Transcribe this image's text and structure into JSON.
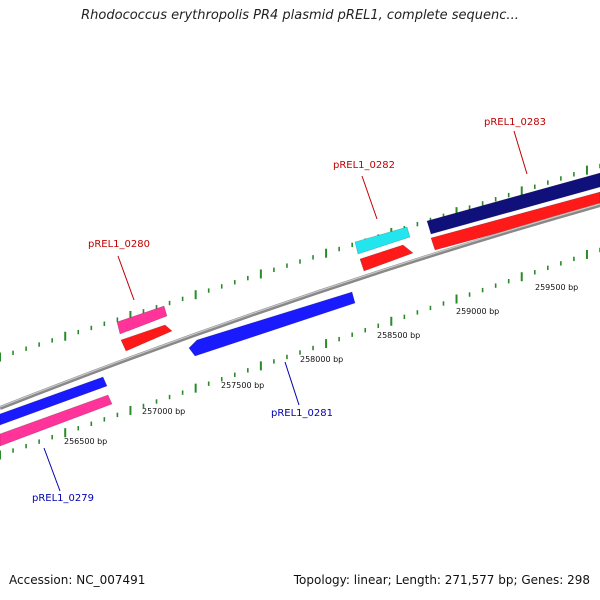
{
  "title": "Rhodococcus erythropolis PR4 plasmid pREL1, complete sequenc...",
  "footer": {
    "accession": "Accession: NC_007491",
    "summary": "Topology: linear; Length: 271,577 bp; Genes: 298"
  },
  "colors": {
    "backbone": "#8c8c8c",
    "tick": "#2a8a2a",
    "forward_label": "#c00000",
    "reverse_label": "#0000b0"
  },
  "scale": {
    "labels": [
      {
        "text": "256500 bp"
      },
      {
        "text": "257000 bp"
      },
      {
        "text": "257500 bp"
      },
      {
        "text": "258000 bp"
      },
      {
        "text": "258500 bp"
      },
      {
        "text": "259000 bp"
      },
      {
        "text": "259500 bp"
      }
    ]
  },
  "genes": [
    {
      "name": "pREL1_0279",
      "strand": "reverse",
      "color": "#ff3399"
    },
    {
      "name": "pREL1_0280",
      "strand": "forward",
      "color": "#ff3399"
    },
    {
      "name": "pREL1_0281",
      "strand": "reverse",
      "color": "#1a1aff"
    },
    {
      "name": "pREL1_0282",
      "strand": "forward",
      "color": "#22e5ee"
    },
    {
      "name": "pREL1_0283",
      "strand": "forward",
      "color": "#10107a"
    }
  ]
}
